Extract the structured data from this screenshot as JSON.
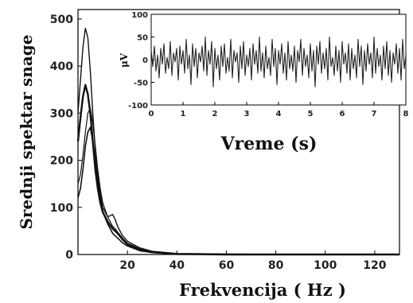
{
  "chart_data": [
    {
      "type": "line",
      "ylabel": "Srednji spektar snage",
      "xlabel": "Frekvencija ( Hz )",
      "xlim": [
        0,
        130
      ],
      "ylim": [
        0,
        520
      ],
      "xticks": [
        20,
        40,
        60,
        80,
        100,
        120
      ],
      "yticks": [
        0,
        100,
        200,
        300,
        400,
        500
      ],
      "x": [
        0,
        1,
        2,
        3,
        4,
        5,
        6,
        7,
        8,
        9,
        10,
        12,
        14,
        15,
        16,
        18,
        20,
        25,
        30,
        40,
        60,
        80,
        100,
        120,
        130
      ],
      "series": [
        {
          "values": [
            300,
            370,
            440,
            480,
            460,
            390,
            300,
            220,
            170,
            130,
            100,
            80,
            85,
            75,
            60,
            40,
            28,
            14,
            7,
            2,
            1,
            0,
            0,
            0,
            0
          ]
        },
        {
          "values": [
            240,
            290,
            335,
            360,
            340,
            300,
            240,
            180,
            140,
            110,
            90,
            70,
            55,
            50,
            45,
            32,
            22,
            10,
            5,
            1,
            0,
            0,
            0,
            0,
            0
          ]
        },
        {
          "values": [
            150,
            170,
            210,
            260,
            300,
            310,
            280,
            230,
            180,
            140,
            110,
            80,
            60,
            55,
            48,
            35,
            24,
            12,
            6,
            2,
            0,
            0,
            0,
            0,
            0
          ]
        },
        {
          "values": [
            120,
            140,
            180,
            230,
            260,
            270,
            240,
            200,
            160,
            120,
            90,
            65,
            45,
            40,
            35,
            25,
            18,
            8,
            4,
            1,
            0,
            0,
            0,
            0,
            0
          ]
        }
      ]
    },
    {
      "type": "line",
      "ylabel": "μV",
      "xlabel": "Vreme (s)",
      "xlim": [
        0,
        8
      ],
      "ylim": [
        -100,
        100
      ],
      "xticks": [
        0,
        1,
        2,
        3,
        4,
        5,
        6,
        7,
        8
      ],
      "yticks": [
        -100,
        -50,
        0,
        50,
        100
      ],
      "sample_step": 0.05,
      "values": [
        20,
        -15,
        30,
        -25,
        10,
        -40,
        25,
        -10,
        35,
        -30,
        5,
        -20,
        40,
        -35,
        15,
        -5,
        25,
        -45,
        30,
        -10,
        20,
        -30,
        45,
        -20,
        10,
        -55,
        35,
        -15,
        25,
        -40,
        15,
        -5,
        30,
        -25,
        50,
        -35,
        20,
        -10,
        40,
        -60,
        25,
        -20,
        10,
        -45,
        30,
        -15,
        35,
        -30,
        5,
        -25,
        45,
        -40,
        20,
        -5,
        15,
        -50,
        30,
        -20,
        40,
        -35,
        10,
        -15,
        25,
        -45,
        35,
        -10,
        20,
        -30,
        50,
        -25,
        15,
        -40,
        30,
        -20,
        5,
        -35,
        45,
        -15,
        25,
        -55,
        20,
        -10,
        35,
        -30,
        15,
        -45,
        40,
        -20,
        10,
        -25,
        30,
        -50,
        20,
        -5,
        45,
        -35,
        25,
        -15,
        10,
        -40,
        35,
        -25,
        20,
        -60,
        30,
        -10,
        40,
        -30,
        15,
        -20,
        25,
        -45,
        50,
        -15,
        5,
        -35,
        30,
        -25,
        20,
        -50,
        40,
        -10,
        15,
        -30,
        35,
        -45,
        25,
        -20,
        10,
        -40,
        45,
        -15,
        30,
        -55,
        20,
        -25,
        35,
        -10,
        15,
        -40,
        50,
        -30,
        25,
        -15,
        10,
        -45,
        30,
        -20,
        40,
        -35,
        20,
        -50,
        15,
        -10,
        35,
        -30,
        25,
        -45,
        45,
        -20,
        10,
        -25,
        30,
        -40,
        20,
        -15
      ]
    }
  ]
}
